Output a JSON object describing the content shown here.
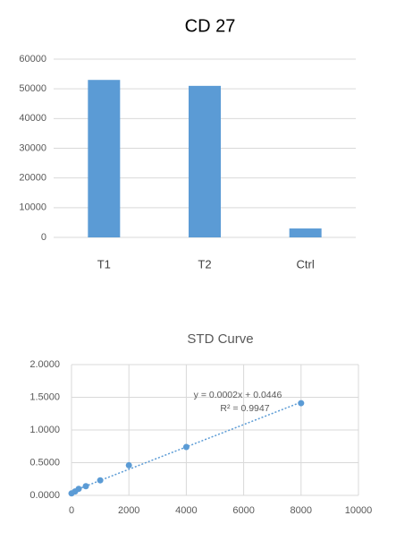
{
  "chart_data": [
    {
      "type": "bar",
      "title": "CD 27",
      "categories": [
        "T1",
        "T2",
        "Ctrl"
      ],
      "values": [
        53000,
        51000,
        3000
      ],
      "color": "#5b9bd5",
      "ylim": [
        0,
        60000
      ],
      "yticks": [
        0,
        10000,
        20000,
        30000,
        40000,
        50000,
        60000
      ],
      "grid": true
    },
    {
      "type": "scatter",
      "title": "STD Curve",
      "x": [
        0,
        125,
        250,
        500,
        1000,
        2000,
        4000,
        8000
      ],
      "values": [
        0.03,
        0.06,
        0.1,
        0.14,
        0.23,
        0.46,
        0.74,
        1.41
      ],
      "color": "#5b9bd5",
      "trendline": true,
      "annotations": [
        "y = 0.0002x + 0.0446",
        "R² = 0.9947"
      ],
      "xlim": [
        0,
        10000
      ],
      "xticks": [
        0,
        2000,
        4000,
        6000,
        8000,
        10000
      ],
      "ylim": [
        0,
        2
      ],
      "yticks": [
        {
          "value": 0,
          "label": "0.0000"
        },
        {
          "value": 0.5,
          "label": "0.5000"
        },
        {
          "value": 1,
          "label": "1.0000"
        },
        {
          "value": 1.5,
          "label": "1.5000"
        },
        {
          "value": 2,
          "label": "2.0000"
        }
      ],
      "grid": true
    }
  ]
}
